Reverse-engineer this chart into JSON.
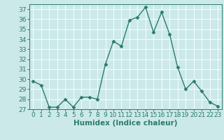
{
  "x": [
    0,
    1,
    2,
    3,
    4,
    5,
    6,
    7,
    8,
    9,
    10,
    11,
    12,
    13,
    14,
    15,
    16,
    17,
    18,
    19,
    20,
    21,
    22,
    23
  ],
  "y": [
    29.8,
    29.4,
    27.2,
    27.2,
    28.0,
    27.2,
    28.2,
    28.2,
    28.0,
    31.5,
    33.8,
    33.3,
    35.9,
    36.2,
    37.2,
    34.7,
    36.7,
    34.5,
    31.2,
    29.0,
    29.8,
    28.8,
    27.7,
    27.3
  ],
  "line_color": "#2d7a6b",
  "marker": "D",
  "marker_size": 2.5,
  "line_width": 1.0,
  "xlabel": "Humidex (Indice chaleur)",
  "xlabel_fontsize": 7.5,
  "tick_fontsize": 6.5,
  "ylim": [
    27,
    37.5
  ],
  "yticks": [
    27,
    28,
    29,
    30,
    31,
    32,
    33,
    34,
    35,
    36,
    37
  ],
  "xticks": [
    0,
    1,
    2,
    3,
    4,
    5,
    6,
    7,
    8,
    9,
    10,
    11,
    12,
    13,
    14,
    15,
    16,
    17,
    18,
    19,
    20,
    21,
    22,
    23
  ],
  "bg_color": "#cce9ea",
  "grid_color": "#ffffff",
  "spine_color": "#2d7a6b"
}
